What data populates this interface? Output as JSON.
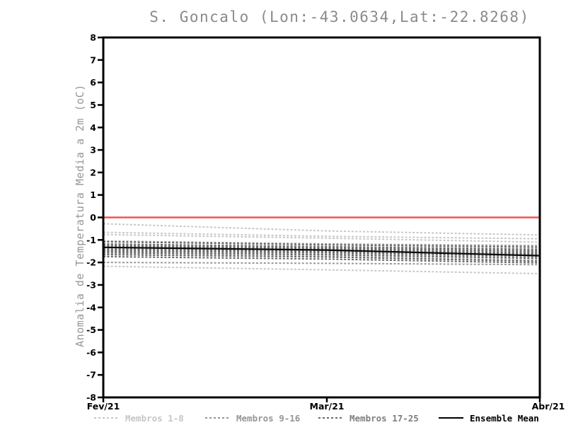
{
  "chart": {
    "title": "S. Goncalo (Lon:-43.0634,Lat:-22.8268)",
    "ylabel": "Anomalia de Temperatura Media a 2m (oC)"
  },
  "legend": {
    "items": [
      {
        "label": "Membros 1-8",
        "color": "#c6c6c6",
        "line_color": "#c6c6c6",
        "style": "dashed"
      },
      {
        "label": "Membros 9-16",
        "color": "#959595",
        "line_color": "#959595",
        "style": "dashed"
      },
      {
        "label": "Membros 17-25",
        "color": "#7e7e7e",
        "line_color": "#6a6a6a",
        "style": "dashed"
      },
      {
        "label": "Ensemble Mean",
        "color": "#000000",
        "line_color": "#000000",
        "style": "solid"
      }
    ]
  },
  "chart_data": {
    "type": "line",
    "title": "S. Goncalo (Lon:-43.0634,Lat:-22.8268)",
    "xlabel": "",
    "ylabel": "Anomalia de Temperatura Media a 2m (oC)",
    "x_categories": [
      "Fev/21",
      "Mar/21",
      "Abr/21"
    ],
    "ylim": [
      -8,
      8
    ],
    "y_tick_step": 1,
    "grid": false,
    "legend_position": "bottom",
    "zero_line": {
      "value": 0,
      "color": "#f85151"
    },
    "axis_color": "#000000",
    "groups": [
      {
        "name": "Membros 1-8",
        "color": "#c8c8c8",
        "style": "dashed",
        "members": [
          [
            -0.28,
            -0.6,
            -0.78
          ],
          [
            -0.66,
            -0.84,
            -0.95
          ],
          [
            -0.76,
            -0.92,
            -1.1
          ],
          [
            -1.2,
            -1.3,
            -1.38
          ],
          [
            -1.35,
            -1.45,
            -1.52
          ],
          [
            -1.5,
            -1.55,
            -1.7
          ],
          [
            -1.62,
            -1.7,
            -1.85
          ],
          [
            -2.17,
            -2.33,
            -2.5
          ]
        ]
      },
      {
        "name": "Membros 9-16",
        "color": "#989898",
        "style": "dashed",
        "members": [
          [
            -1.05,
            -1.18,
            -1.25
          ],
          [
            -1.22,
            -1.33,
            -1.48
          ],
          [
            -1.3,
            -1.4,
            -1.55
          ],
          [
            -1.38,
            -1.47,
            -1.6
          ],
          [
            -1.46,
            -1.54,
            -1.66
          ],
          [
            -1.55,
            -1.63,
            -1.78
          ],
          [
            -1.66,
            -1.74,
            -1.92
          ],
          [
            -2.0,
            -2.04,
            -2.1
          ]
        ]
      },
      {
        "name": "Membros 17-25",
        "color": "#666666",
        "style": "dashed",
        "members": [
          [
            -1.08,
            -1.22,
            -1.32
          ],
          [
            -1.18,
            -1.3,
            -1.42
          ],
          [
            -1.26,
            -1.37,
            -1.5
          ],
          [
            -1.33,
            -1.44,
            -1.58
          ],
          [
            -1.41,
            -1.5,
            -1.64
          ],
          [
            -1.49,
            -1.57,
            -1.72
          ],
          [
            -1.57,
            -1.66,
            -1.82
          ],
          [
            -1.65,
            -1.76,
            -1.95
          ],
          [
            -1.74,
            -1.85,
            -2.02
          ]
        ]
      }
    ],
    "ensemble_mean": {
      "name": "Ensemble Mean",
      "color": "#0a0a0a",
      "style": "solid",
      "values": [
        -1.33,
        -1.45,
        -1.7
      ]
    }
  }
}
